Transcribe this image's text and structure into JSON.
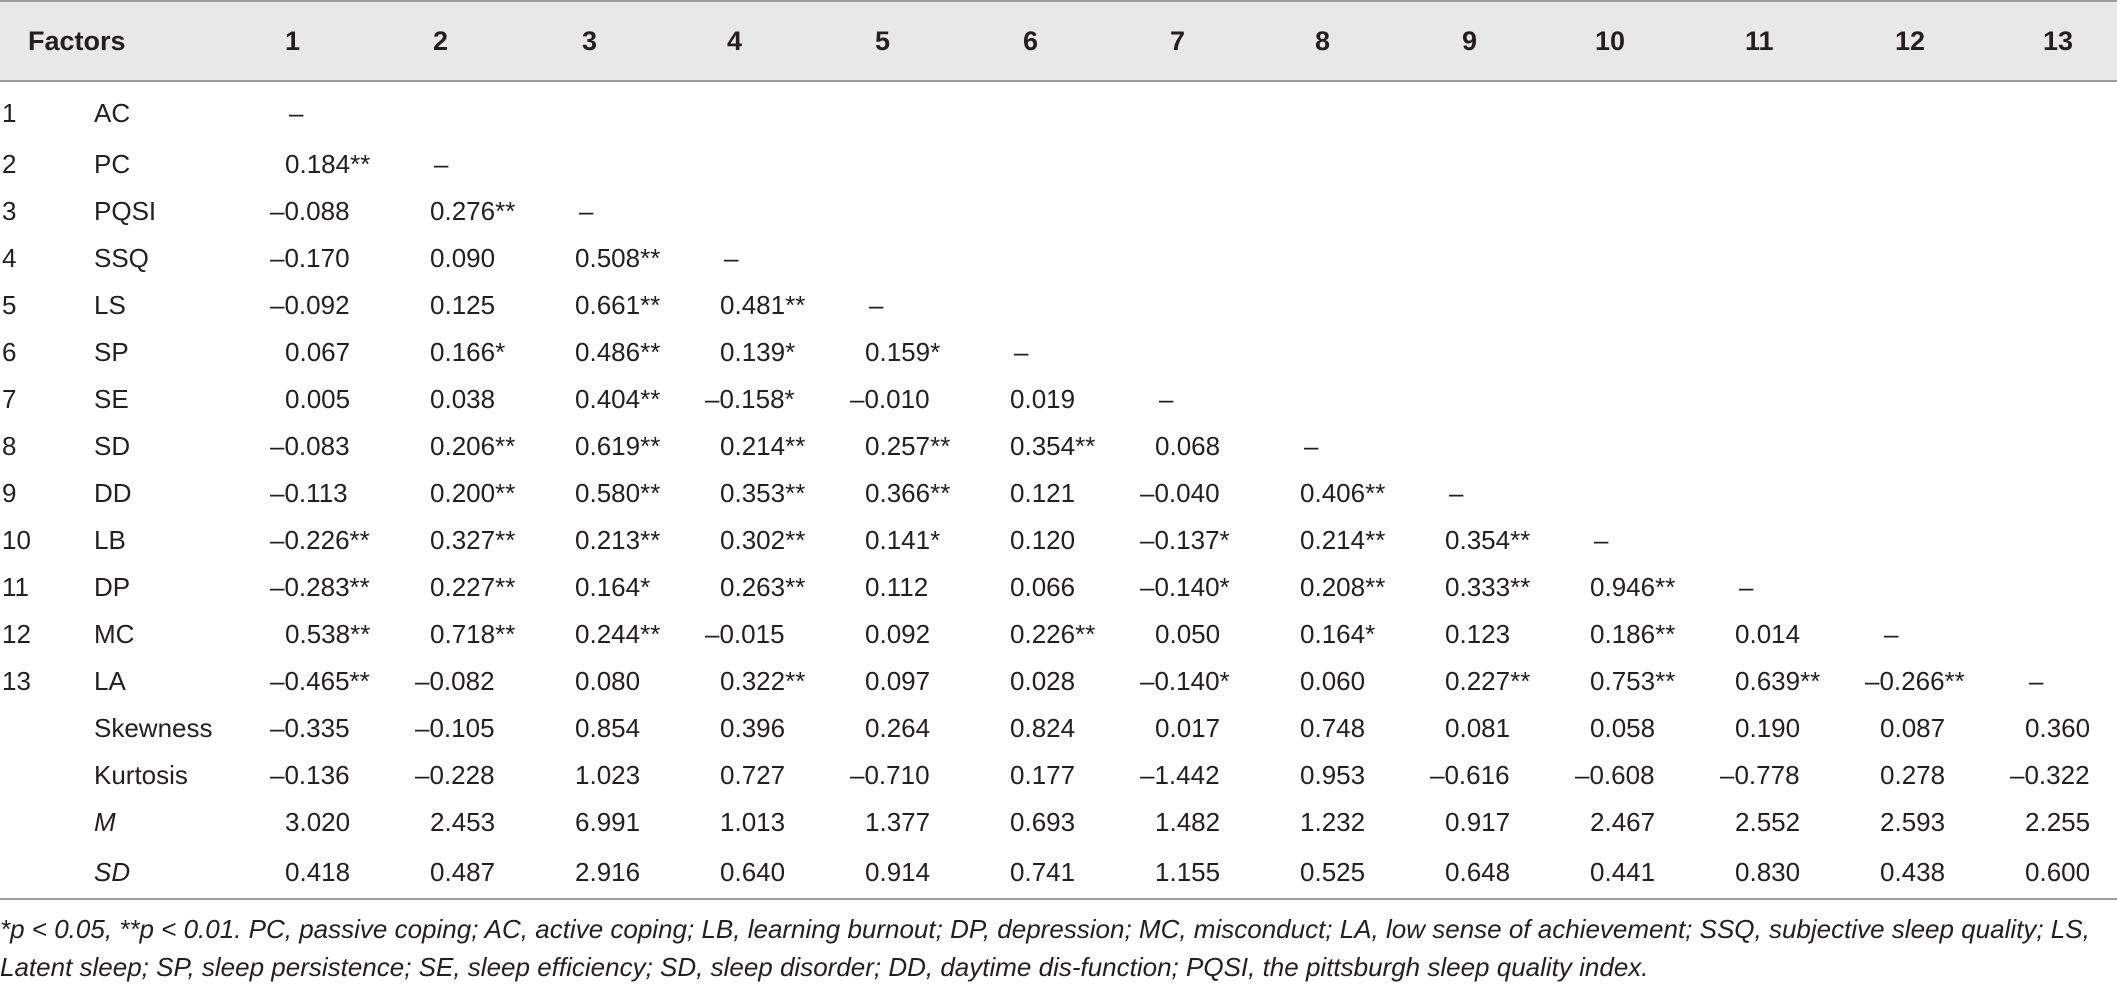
{
  "table": {
    "header": {
      "factors_label": "Factors",
      "columns": [
        "1",
        "2",
        "3",
        "4",
        "5",
        "6",
        "7",
        "8",
        "9",
        "10",
        "11",
        "12",
        "13"
      ]
    },
    "rows": [
      {
        "idx": "1",
        "factor": "AC",
        "values": [
          "–",
          "",
          "",
          "",
          "",
          "",
          "",
          "",
          "",
          "",
          "",
          "",
          ""
        ]
      },
      {
        "idx": "2",
        "factor": "PC",
        "values": [
          "0.184**",
          "–",
          "",
          "",
          "",
          "",
          "",
          "",
          "",
          "",
          "",
          "",
          ""
        ]
      },
      {
        "idx": "3",
        "factor": "PQSI",
        "values": [
          "–0.088",
          "0.276**",
          "–",
          "",
          "",
          "",
          "",
          "",
          "",
          "",
          "",
          "",
          ""
        ]
      },
      {
        "idx": "4",
        "factor": "SSQ",
        "values": [
          "–0.170",
          "0.090",
          "0.508**",
          "–",
          "",
          "",
          "",
          "",
          "",
          "",
          "",
          "",
          ""
        ]
      },
      {
        "idx": "5",
        "factor": "LS",
        "values": [
          "–0.092",
          "0.125",
          "0.661**",
          "0.481**",
          "–",
          "",
          "",
          "",
          "",
          "",
          "",
          "",
          ""
        ]
      },
      {
        "idx": "6",
        "factor": "SP",
        "values": [
          "0.067",
          "0.166*",
          "0.486**",
          "0.139*",
          "0.159*",
          "–",
          "",
          "",
          "",
          "",
          "",
          "",
          ""
        ]
      },
      {
        "idx": "7",
        "factor": "SE",
        "values": [
          "0.005",
          "0.038",
          "0.404**",
          "–0.158*",
          "–0.010",
          "0.019",
          "–",
          "",
          "",
          "",
          "",
          "",
          ""
        ]
      },
      {
        "idx": "8",
        "factor": "SD",
        "values": [
          "–0.083",
          "0.206**",
          "0.619**",
          "0.214**",
          "0.257**",
          "0.354**",
          "0.068",
          "–",
          "",
          "",
          "",
          "",
          ""
        ]
      },
      {
        "idx": "9",
        "factor": "DD",
        "values": [
          "–0.113",
          "0.200**",
          "0.580**",
          "0.353**",
          "0.366**",
          "0.121",
          "–0.040",
          "0.406**",
          "–",
          "",
          "",
          "",
          ""
        ]
      },
      {
        "idx": "10",
        "factor": "LB",
        "values": [
          "–0.226**",
          "0.327**",
          "0.213**",
          "0.302**",
          "0.141*",
          "0.120",
          "–0.137*",
          "0.214**",
          "0.354**",
          "–",
          "",
          "",
          ""
        ]
      },
      {
        "idx": "11",
        "factor": "DP",
        "values": [
          "–0.283**",
          "0.227**",
          "0.164*",
          "0.263**",
          "0.112",
          "0.066",
          "–0.140*",
          "0.208**",
          "0.333**",
          "0.946**",
          "–",
          "",
          ""
        ]
      },
      {
        "idx": "12",
        "factor": "MC",
        "values": [
          "0.538**",
          "0.718**",
          "0.244**",
          "–0.015",
          "0.092",
          "0.226**",
          "0.050",
          "0.164*",
          "0.123",
          "0.186**",
          "0.014",
          "–",
          ""
        ]
      },
      {
        "idx": "13",
        "factor": "LA",
        "values": [
          "–0.465**",
          "–0.082",
          "0.080",
          "0.322**",
          "0.097",
          "0.028",
          "–0.140*",
          "0.060",
          "0.227**",
          "0.753**",
          "0.639**",
          "–0.266**",
          "–"
        ]
      },
      {
        "idx": "",
        "factor": "Skewness",
        "values": [
          "–0.335",
          "–0.105",
          "0.854",
          "0.396",
          "0.264",
          "0.824",
          "0.017",
          "0.748",
          "0.081",
          "0.058",
          "0.190",
          "0.087",
          "0.360"
        ]
      },
      {
        "idx": "",
        "factor": "Kurtosis",
        "values": [
          "–0.136",
          "–0.228",
          "1.023",
          "0.727",
          "–0.710",
          "0.177",
          "–1.442",
          "0.953",
          "–0.616",
          "–0.608",
          "–0.778",
          "0.278",
          "–0.322"
        ]
      },
      {
        "idx": "",
        "factor": "M",
        "italic": true,
        "values": [
          "3.020",
          "2.453",
          "6.991",
          "1.013",
          "1.377",
          "0.693",
          "1.482",
          "1.232",
          "0.917",
          "2.467",
          "2.552",
          "2.593",
          "2.255"
        ]
      },
      {
        "idx": "",
        "factor": "SD",
        "italic": true,
        "values": [
          "0.418",
          "0.487",
          "2.916",
          "0.640",
          "0.914",
          "0.741",
          "1.155",
          "0.525",
          "0.648",
          "0.441",
          "0.830",
          "0.438",
          "0.600"
        ]
      }
    ]
  },
  "footnote": "*p < 0.05, **p < 0.01. PC, passive coping; AC, active coping; LB, learning burnout; DP, depression; MC, misconduct; LA, low sense of achievement; SSQ, subjective sleep quality; LS, Latent sleep; SP, sleep persistence; SE, sleep efficiency; SD, sleep disorder; DD, daytime dis-function; PQSI, the pittsburgh sleep quality index."
}
